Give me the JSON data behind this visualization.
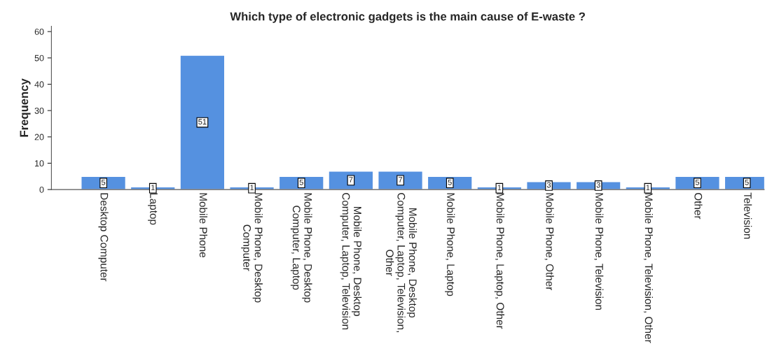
{
  "chart_data": {
    "type": "bar",
    "title": "Which type of electronic gadgets is the main cause of E-waste ?",
    "ylabel": "Frequency",
    "categories": [
      "Desktop Computer",
      "Laptop",
      "Mobile Phone",
      "Mobile Phone, Desktop\nComputer",
      "Mobile Phone, Desktop\nComputer, Laptop",
      "Mobile Phone, Desktop\nComputer, Laptop, Television",
      "Mobile Phone, Desktop\nComputer, Laptop, Television,\nOther",
      "Mobile Phone, Laptop",
      "Mobile Phone, Laptop, Other",
      "Mobile Phone, Other",
      "Mobile Phone, Television",
      "Mobile Phone, Television, Other",
      "Other",
      "Television"
    ],
    "values": [
      5,
      1,
      51,
      1,
      5,
      7,
      7,
      5,
      1,
      3,
      3,
      1,
      5,
      5
    ],
    "color": "#5591e0",
    "ylim": [
      0,
      62
    ],
    "yticks": [
      0,
      10,
      20,
      30,
      40,
      50,
      60
    ],
    "grid": false,
    "data_labels": true
  }
}
